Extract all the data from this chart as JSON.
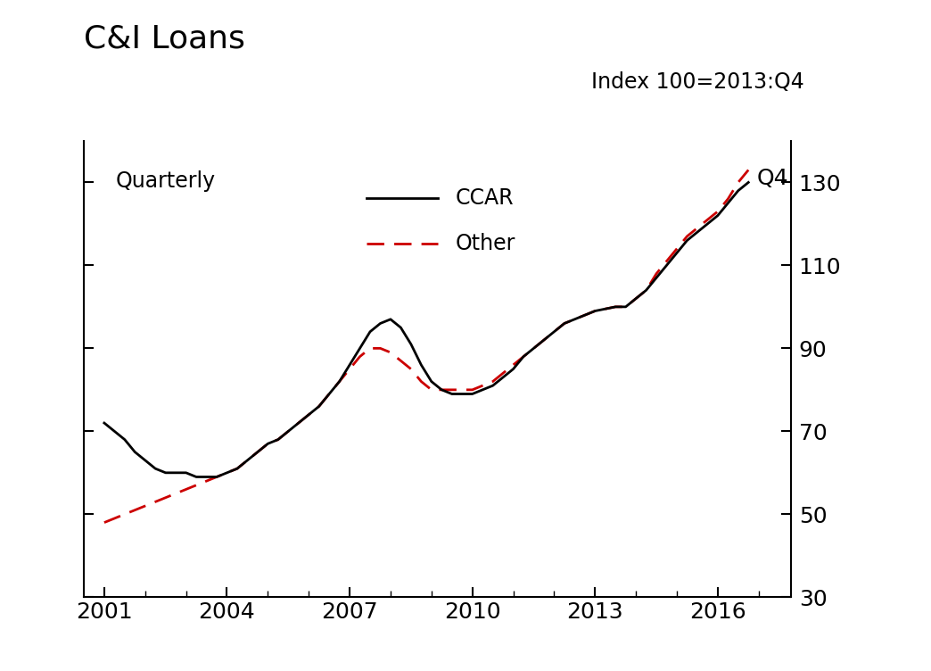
{
  "title": "C&I Loans",
  "subtitle": "Index 100=2013:Q4",
  "quarterly_label": "Quarterly",
  "q4_label": "Q4",
  "legend_ccar": "CCAR",
  "legend_other": "Other",
  "ylim": [
    30,
    140
  ],
  "yticks": [
    30,
    50,
    70,
    90,
    110,
    130
  ],
  "xlim_start": 2000.5,
  "xlim_end": 2017.8,
  "xticks": [
    2001,
    2004,
    2007,
    2010,
    2013,
    2016
  ],
  "ccar_color": "#000000",
  "other_color": "#cc0000",
  "ccar_x": [
    2001.0,
    2001.25,
    2001.5,
    2001.75,
    2002.0,
    2002.25,
    2002.5,
    2002.75,
    2003.0,
    2003.25,
    2003.5,
    2003.75,
    2004.0,
    2004.25,
    2004.5,
    2004.75,
    2005.0,
    2005.25,
    2005.5,
    2005.75,
    2006.0,
    2006.25,
    2006.5,
    2006.75,
    2007.0,
    2007.25,
    2007.5,
    2007.75,
    2008.0,
    2008.25,
    2008.5,
    2008.75,
    2009.0,
    2009.25,
    2009.5,
    2009.75,
    2010.0,
    2010.25,
    2010.5,
    2010.75,
    2011.0,
    2011.25,
    2011.5,
    2011.75,
    2012.0,
    2012.25,
    2012.5,
    2012.75,
    2013.0,
    2013.25,
    2013.5,
    2013.75,
    2014.0,
    2014.25,
    2014.5,
    2014.75,
    2015.0,
    2015.25,
    2015.5,
    2015.75,
    2016.0,
    2016.25,
    2016.5,
    2016.75
  ],
  "ccar_y": [
    72,
    70,
    68,
    65,
    63,
    61,
    60,
    60,
    60,
    59,
    59,
    59,
    60,
    61,
    63,
    65,
    67,
    68,
    70,
    72,
    74,
    76,
    79,
    82,
    86,
    90,
    94,
    96,
    97,
    95,
    91,
    86,
    82,
    80,
    79,
    79,
    79,
    80,
    81,
    83,
    85,
    88,
    90,
    92,
    94,
    96,
    97,
    98,
    99,
    99.5,
    100,
    100,
    102,
    104,
    107,
    110,
    113,
    116,
    118,
    120,
    122,
    125,
    128,
    130
  ],
  "other_x": [
    2001.0,
    2001.25,
    2001.5,
    2001.75,
    2002.0,
    2002.25,
    2002.5,
    2002.75,
    2003.0,
    2003.25,
    2003.5,
    2003.75,
    2004.0,
    2004.25,
    2004.5,
    2004.75,
    2005.0,
    2005.25,
    2005.5,
    2005.75,
    2006.0,
    2006.25,
    2006.5,
    2006.75,
    2007.0,
    2007.25,
    2007.5,
    2007.75,
    2008.0,
    2008.25,
    2008.5,
    2008.75,
    2009.0,
    2009.25,
    2009.5,
    2009.75,
    2010.0,
    2010.25,
    2010.5,
    2010.75,
    2011.0,
    2011.25,
    2011.5,
    2011.75,
    2012.0,
    2012.25,
    2012.5,
    2012.75,
    2013.0,
    2013.25,
    2013.5,
    2013.75,
    2014.0,
    2014.25,
    2014.5,
    2014.75,
    2015.0,
    2015.25,
    2015.5,
    2015.75,
    2016.0,
    2016.25,
    2016.5,
    2016.75
  ],
  "other_y": [
    48,
    49,
    50,
    51,
    52,
    53,
    54,
    55,
    56,
    57,
    58,
    59,
    60,
    61,
    63,
    65,
    67,
    68,
    70,
    72,
    74,
    76,
    79,
    82,
    85,
    88,
    90,
    90,
    89,
    87,
    85,
    82,
    80,
    80,
    80,
    80,
    80,
    81,
    82,
    84,
    86,
    88,
    90,
    92,
    94,
    96,
    97,
    98,
    99,
    99.5,
    100,
    100,
    102,
    104,
    108,
    111,
    114,
    117,
    119,
    121,
    123,
    126,
    130,
    133
  ],
  "title_fontsize": 26,
  "subtitle_fontsize": 17,
  "label_fontsize": 18,
  "legend_fontsize": 17,
  "tick_labelsize": 18,
  "linewidth": 2.0,
  "spine_linewidth": 1.5
}
